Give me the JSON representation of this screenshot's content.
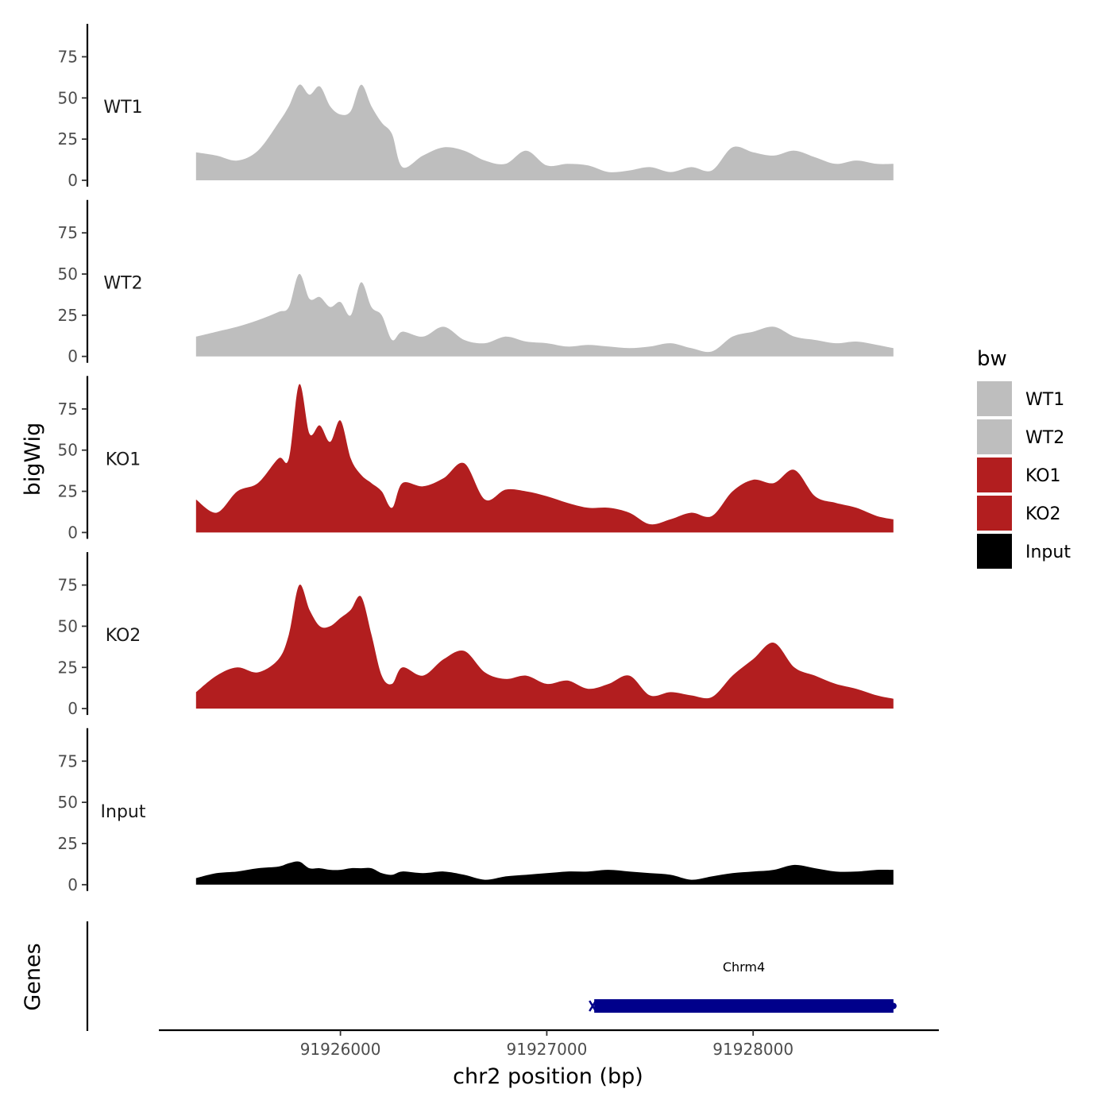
{
  "chart_data": {
    "type": "area",
    "facet": "tracks",
    "xlabel": "chr2 position (bp)",
    "ylabel": "bigWig",
    "genes_label": "Genes",
    "xlim": [
      91925120,
      91928900
    ],
    "ylim": [
      0,
      95
    ],
    "x_ticks": [
      91926000,
      91927000,
      91928000
    ],
    "y_ticks": [
      0,
      25,
      50,
      75
    ],
    "legend": {
      "title": "bw",
      "position": "right"
    },
    "colors": {
      "WT1": "#bebebe",
      "WT2": "#bebebe",
      "KO1": "#b21e1f",
      "KO2": "#b21e1f",
      "Input": "#000000",
      "gene": "#00008b"
    },
    "x": [
      91925300,
      91925400,
      91925500,
      91925600,
      91925700,
      91925750,
      91925800,
      91925850,
      91925900,
      91925950,
      91926000,
      91926050,
      91926100,
      91926150,
      91926200,
      91926250,
      91926300,
      91926400,
      91926500,
      91926600,
      91926700,
      91926800,
      91926900,
      91927000,
      91927100,
      91927200,
      91927300,
      91927400,
      91927500,
      91927600,
      91927700,
      91927800,
      91927900,
      91928000,
      91928100,
      91928200,
      91928300,
      91928400,
      91928500,
      91928600,
      91928680
    ],
    "series": [
      {
        "name": "WT1",
        "values": [
          17,
          15,
          12,
          18,
          35,
          45,
          58,
          52,
          57,
          45,
          40,
          42,
          58,
          45,
          35,
          28,
          8,
          15,
          20,
          18,
          12,
          10,
          18,
          9,
          10,
          9,
          5,
          6,
          8,
          5,
          8,
          6,
          20,
          17,
          15,
          18,
          14,
          10,
          12,
          10,
          10
        ]
      },
      {
        "name": "WT2",
        "values": [
          12,
          15,
          18,
          22,
          27,
          30,
          50,
          35,
          36,
          30,
          33,
          25,
          45,
          30,
          25,
          10,
          15,
          12,
          18,
          10,
          8,
          12,
          9,
          8,
          6,
          7,
          6,
          5,
          6,
          8,
          5,
          3,
          12,
          15,
          18,
          12,
          10,
          8,
          9,
          7,
          5
        ]
      },
      {
        "name": "KO1",
        "values": [
          20,
          12,
          25,
          30,
          45,
          45,
          90,
          60,
          65,
          55,
          68,
          45,
          35,
          30,
          25,
          15,
          30,
          28,
          33,
          42,
          20,
          26,
          25,
          22,
          18,
          15,
          15,
          12,
          5,
          8,
          12,
          10,
          25,
          32,
          30,
          38,
          22,
          18,
          15,
          10,
          8
        ]
      },
      {
        "name": "KO2",
        "values": [
          10,
          20,
          25,
          22,
          30,
          45,
          75,
          60,
          50,
          50,
          55,
          60,
          68,
          45,
          20,
          15,
          25,
          20,
          30,
          35,
          22,
          18,
          20,
          15,
          17,
          12,
          15,
          20,
          8,
          10,
          8,
          7,
          20,
          30,
          40,
          25,
          20,
          15,
          12,
          8,
          6
        ]
      },
      {
        "name": "Input",
        "values": [
          4,
          7,
          8,
          10,
          11,
          13,
          14,
          10,
          10,
          9,
          9,
          10,
          10,
          10,
          7,
          6,
          8,
          7,
          8,
          6,
          3,
          5,
          6,
          7,
          8,
          8,
          9,
          8,
          7,
          6,
          3,
          5,
          7,
          8,
          9,
          12,
          10,
          8,
          8,
          9,
          9
        ]
      }
    ],
    "genes": [
      {
        "name": "Chrm4",
        "start": 91927230,
        "end": 91928680,
        "strand": "-"
      }
    ]
  }
}
